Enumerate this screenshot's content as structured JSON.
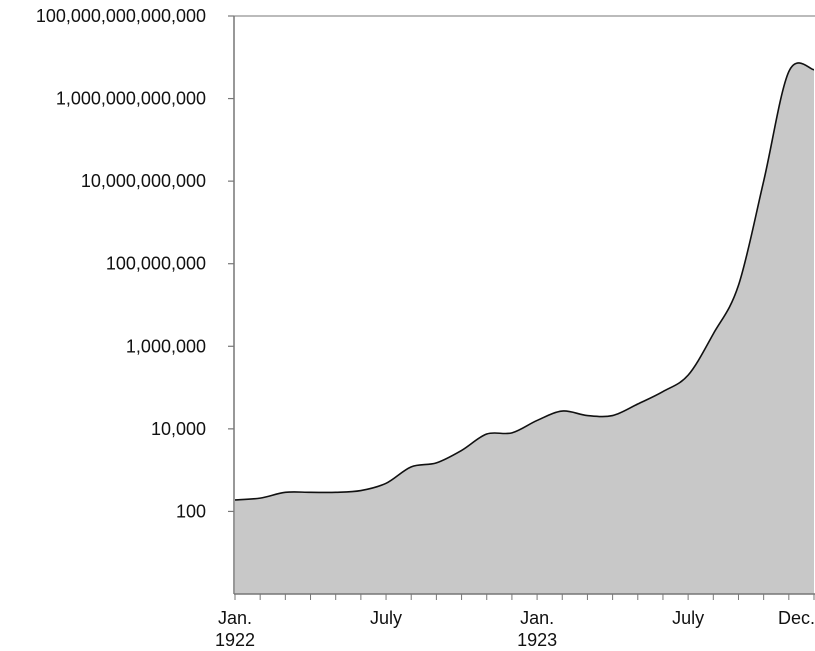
{
  "chart_data": {
    "type": "area",
    "title": "",
    "xlabel": "",
    "ylabel": "",
    "yscale": "log",
    "ylim": [
      1,
      100000000000000
    ],
    "xlim": [
      "1922-01",
      "1923-12"
    ],
    "grid": false,
    "y_ticks": [
      {
        "value": 100,
        "label": "100"
      },
      {
        "value": 10000,
        "label": "10,000"
      },
      {
        "value": 1000000,
        "label": "1,000,000"
      },
      {
        "value": 100000000,
        "label": "100,000,000"
      },
      {
        "value": 10000000000,
        "label": "10,000,000,000"
      },
      {
        "value": 1000000000000,
        "label": "1,000,000,000,000"
      },
      {
        "value": 100000000000000,
        "label": "100,000,000,000,000"
      }
    ],
    "x_ticks": [
      {
        "x": "1922-01",
        "lines": [
          "Jan.",
          "1922"
        ]
      },
      {
        "x": "1922-07",
        "lines": [
          "July"
        ]
      },
      {
        "x": "1923-01",
        "lines": [
          "Jan.",
          "1923"
        ]
      },
      {
        "x": "1923-07",
        "lines": [
          "July"
        ]
      },
      {
        "x": "1923-12",
        "lines": [
          "Dec."
        ]
      }
    ],
    "x_minor_ticks": [
      "1922-01",
      "1922-02",
      "1922-03",
      "1922-04",
      "1922-05",
      "1922-06",
      "1922-07",
      "1922-08",
      "1922-09",
      "1922-10",
      "1922-11",
      "1922-12",
      "1923-01",
      "1923-02",
      "1923-03",
      "1923-04",
      "1923-05",
      "1923-06",
      "1923-07",
      "1923-08",
      "1923-09",
      "1923-10",
      "1923-11",
      "1923-12"
    ],
    "series": [
      {
        "x": [
          "1922-01",
          "1922-02",
          "1922-03",
          "1922-04",
          "1922-05",
          "1922-06",
          "1922-07",
          "1922-08",
          "1922-09",
          "1922-10",
          "1922-11",
          "1922-12",
          "1923-01",
          "1923-02",
          "1923-03",
          "1923-04",
          "1923-05",
          "1923-06",
          "1923-07",
          "1923-08",
          "1923-09",
          "1923-10",
          "1923-11",
          "1923-12"
        ],
        "values": [
          190,
          210,
          290,
          290,
          290,
          320,
          480,
          1200,
          1500,
          3000,
          7500,
          8000,
          16000,
          27000,
          21000,
          21000,
          40000,
          80000,
          200000,
          2000000,
          30000000,
          10000000000,
          4500000000000,
          5000000000000
        ]
      }
    ],
    "colors": {
      "area": "#c8c8c8",
      "line": "#111111",
      "axis": "#777777"
    }
  }
}
